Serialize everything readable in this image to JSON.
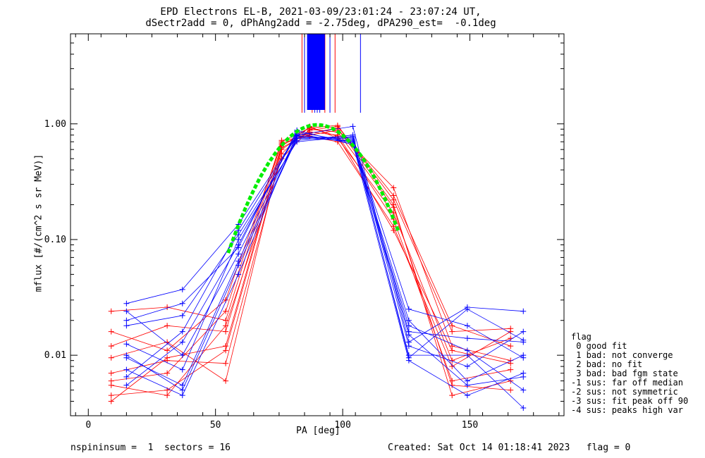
{
  "chart_data": {
    "type": "line",
    "title": "EPD Electrons EL-B, 2021-03-09/23:01:24 - 23:07:24 UT,",
    "subtitle": "dSectr2add = 0, dPhAng2add = -2.75deg, dPA290_est=  -0.1deg",
    "xlabel": "PA [deg]",
    "ylabel": "mflux [#/(cm^2 s sr MeV)]",
    "xlim": [
      -7,
      187
    ],
    "ylim": [
      0.003,
      6.0
    ],
    "yscale": "log",
    "xticks": [
      0,
      50,
      100,
      150
    ],
    "xtick_labels": [
      "0",
      "50",
      "100",
      "150"
    ],
    "yticks": [
      0.01,
      0.1,
      1.0
    ],
    "ytick_labels": [
      "0.01",
      "0.10",
      "1.00"
    ],
    "grid": false,
    "legend_position": "right-outside",
    "colors": {
      "red": "#ff0000",
      "blue": "#0000ff",
      "fit": "#00ee00"
    },
    "series": [
      {
        "color": "red",
        "x": [
          9,
          31,
          54,
          76,
          87,
          98,
          120,
          143,
          166
        ],
        "y": [
          0.024,
          0.026,
          0.02,
          0.7,
          0.92,
          0.97,
          0.22,
          0.016,
          0.017
        ]
      },
      {
        "color": "red",
        "x": [
          9,
          31,
          54,
          76,
          87,
          98,
          120,
          143,
          166
        ],
        "y": [
          0.0045,
          0.005,
          0.011,
          0.62,
          0.85,
          0.8,
          0.15,
          0.006,
          0.0075
        ]
      },
      {
        "color": "red",
        "x": [
          9,
          31,
          54,
          76,
          87,
          98,
          120,
          143,
          166
        ],
        "y": [
          0.016,
          0.011,
          0.03,
          0.68,
          0.8,
          0.88,
          0.28,
          0.012,
          0.009
        ]
      },
      {
        "color": "red",
        "x": [
          9,
          31,
          54,
          76,
          87,
          98,
          120,
          143,
          166
        ],
        "y": [
          0.007,
          0.009,
          0.0085,
          0.55,
          0.95,
          0.75,
          0.17,
          0.009,
          0.014
        ]
      },
      {
        "color": "red",
        "x": [
          9,
          31,
          54,
          76,
          87,
          98,
          120,
          143,
          166
        ],
        "y": [
          0.012,
          0.018,
          0.016,
          0.66,
          0.83,
          0.92,
          0.2,
          0.0045,
          0.006
        ]
      },
      {
        "color": "red",
        "x": [
          9,
          31,
          54,
          76,
          87,
          98,
          120,
          143,
          166
        ],
        "y": [
          0.006,
          0.007,
          0.024,
          0.72,
          0.78,
          0.7,
          0.13,
          0.008,
          0.016
        ]
      },
      {
        "color": "red",
        "x": [
          9,
          31,
          54,
          76,
          87,
          98,
          120,
          143,
          166
        ],
        "y": [
          0.0095,
          0.013,
          0.006,
          0.6,
          0.88,
          0.95,
          0.24,
          0.018,
          0.012
        ]
      },
      {
        "color": "red",
        "x": [
          9,
          31,
          54,
          76,
          87,
          98,
          120,
          143,
          166
        ],
        "y": [
          0.0055,
          0.0045,
          0.018,
          0.5,
          0.9,
          0.85,
          0.19,
          0.0055,
          0.005
        ]
      },
      {
        "color": "red",
        "x": [
          9,
          31,
          54,
          76,
          87,
          98,
          120,
          143,
          166
        ],
        "y": [
          0.004,
          0.0095,
          0.012,
          0.64,
          0.93,
          0.78,
          0.12,
          0.011,
          0.0085
        ]
      },
      {
        "color": "blue",
        "x": [
          15,
          37,
          59,
          82,
          104,
          126,
          149,
          171
        ],
        "y": [
          0.028,
          0.037,
          0.135,
          0.8,
          0.95,
          0.013,
          0.026,
          0.024
        ]
      },
      {
        "color": "blue",
        "x": [
          15,
          37,
          59,
          82,
          104,
          126,
          149,
          171
        ],
        "y": [
          0.01,
          0.005,
          0.06,
          0.75,
          0.72,
          0.01,
          0.01,
          0.0035
        ]
      },
      {
        "color": "blue",
        "x": [
          15,
          37,
          59,
          82,
          104,
          126,
          149,
          171
        ],
        "y": [
          0.0055,
          0.013,
          0.09,
          0.85,
          0.7,
          0.02,
          0.006,
          0.01
        ]
      },
      {
        "color": "blue",
        "x": [
          15,
          37,
          59,
          82,
          104,
          126,
          149,
          171
        ],
        "y": [
          0.018,
          0.022,
          0.11,
          0.7,
          0.78,
          0.016,
          0.014,
          0.013
        ]
      },
      {
        "color": "blue",
        "x": [
          15,
          37,
          59,
          82,
          104,
          126,
          149,
          171
        ],
        "y": [
          0.0075,
          0.0045,
          0.05,
          0.82,
          0.68,
          0.009,
          0.0045,
          0.007
        ]
      },
      {
        "color": "blue",
        "x": [
          15,
          37,
          59,
          82,
          104,
          126,
          149,
          171
        ],
        "y": [
          0.024,
          0.01,
          0.075,
          0.78,
          0.74,
          0.025,
          0.018,
          0.0095
        ]
      },
      {
        "color": "blue",
        "x": [
          15,
          37,
          59,
          82,
          104,
          126,
          149,
          171
        ],
        "y": [
          0.0125,
          0.0075,
          0.1,
          0.72,
          0.8,
          0.012,
          0.008,
          0.016
        ]
      },
      {
        "color": "blue",
        "x": [
          15,
          37,
          59,
          82,
          104,
          126,
          149,
          171
        ],
        "y": [
          0.02,
          0.028,
          0.085,
          0.88,
          0.66,
          0.018,
          0.011,
          0.005
        ]
      },
      {
        "color": "blue",
        "x": [
          15,
          37,
          59,
          82,
          104,
          126,
          149,
          171
        ],
        "y": [
          0.0095,
          0.0055,
          0.065,
          0.76,
          0.76,
          0.0095,
          0.025,
          0.0135
        ]
      },
      {
        "color": "blue",
        "x": [
          15,
          37,
          59,
          82,
          104,
          126,
          149,
          171
        ],
        "y": [
          0.0065,
          0.016,
          0.12,
          0.79,
          0.7,
          0.015,
          0.0055,
          0.0065
        ]
      }
    ],
    "fit_curve": {
      "color": "fit",
      "peak_x": 90,
      "peak_y": 0.98,
      "width_deg": 15.5,
      "x_range": [
        55,
        122
      ]
    },
    "vertical_lines": [
      {
        "color": "red",
        "x": [
          84,
          93,
          97,
          88
        ]
      },
      {
        "color": "blue",
        "x": [
          85,
          95,
          107,
          89,
          90,
          91
        ]
      }
    ],
    "legend": {
      "title": "flag",
      "entries": [
        " 0 good fit",
        " 1 bad: not converge",
        " 2 bad: no fit",
        " 3 bad: bad fgm state",
        "-1 sus: far off median",
        "-2 sus: not symmetric",
        "-3 sus: fit peak off 90",
        "-4 sus: peaks high var"
      ]
    }
  },
  "footer": {
    "left": "nspininsum =  1  sectors = 16",
    "right": "Created: Sat Oct 14 01:18:41 2023   flag = 0"
  }
}
